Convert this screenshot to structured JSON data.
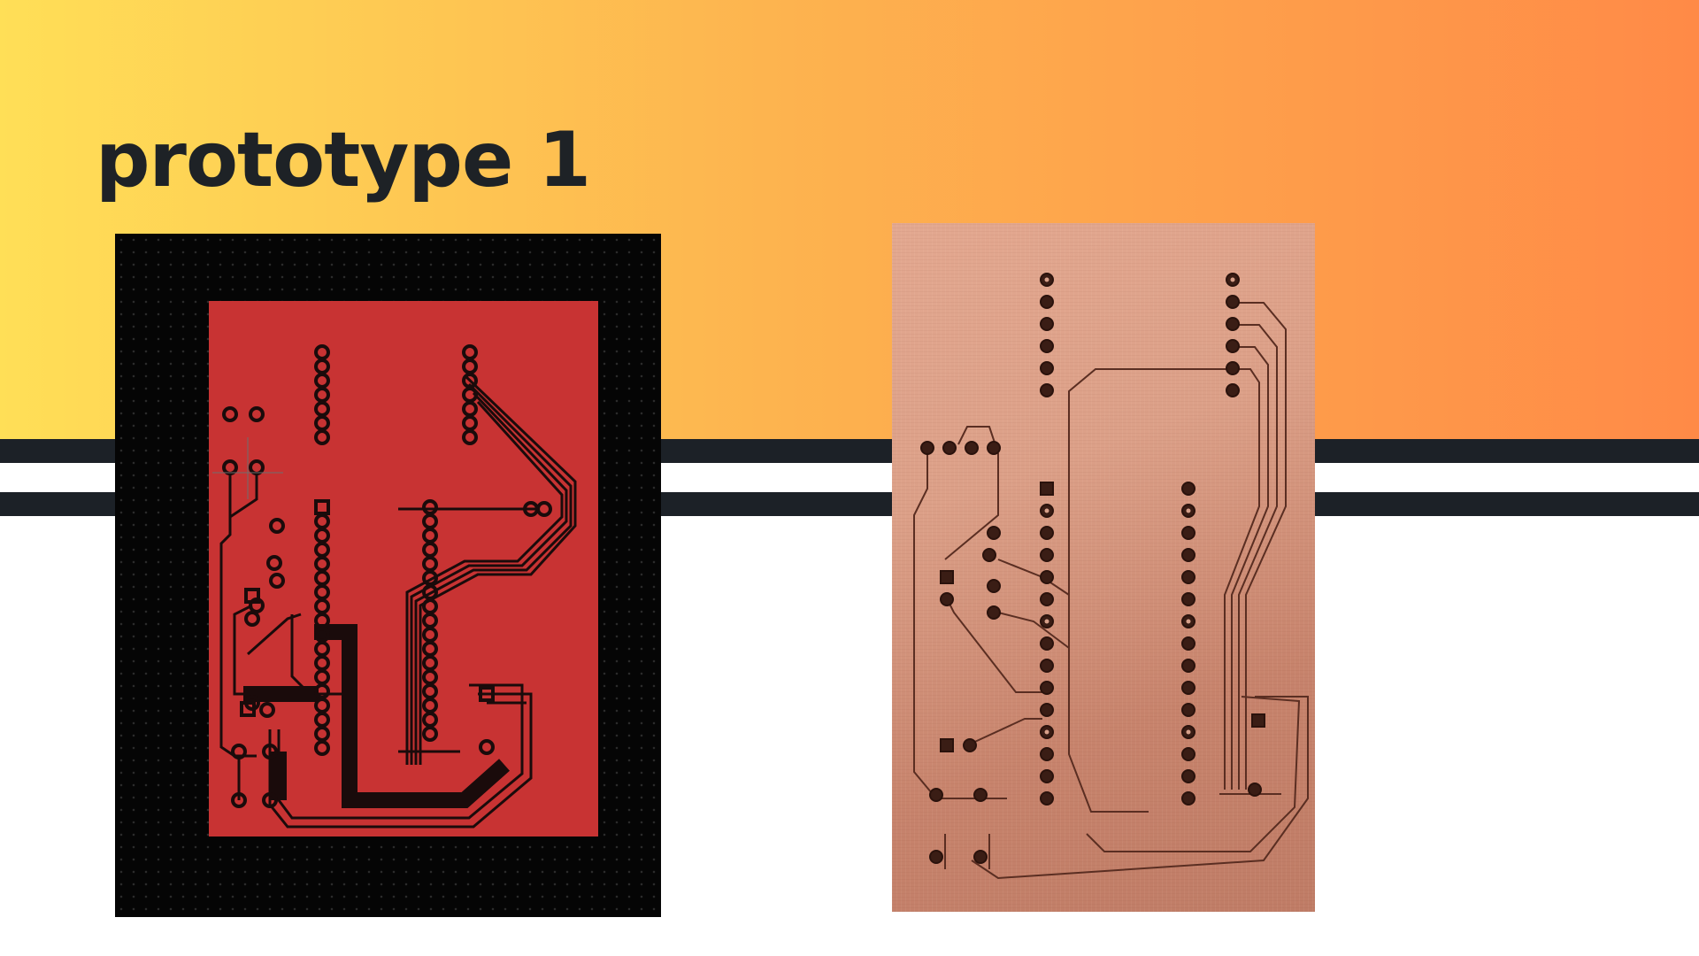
{
  "slide": {
    "title": "prototype 1"
  },
  "colors": {
    "gradient_start": "#ffdf57",
    "gradient_end": "#ff8a47",
    "stripe": "#1c2127",
    "design_copper": "#c83333",
    "design_background": "#050505",
    "photo_copper": "#d89b84"
  },
  "images": {
    "left": "pcb-layout-design",
    "right": "etched-copper-board-photo"
  }
}
